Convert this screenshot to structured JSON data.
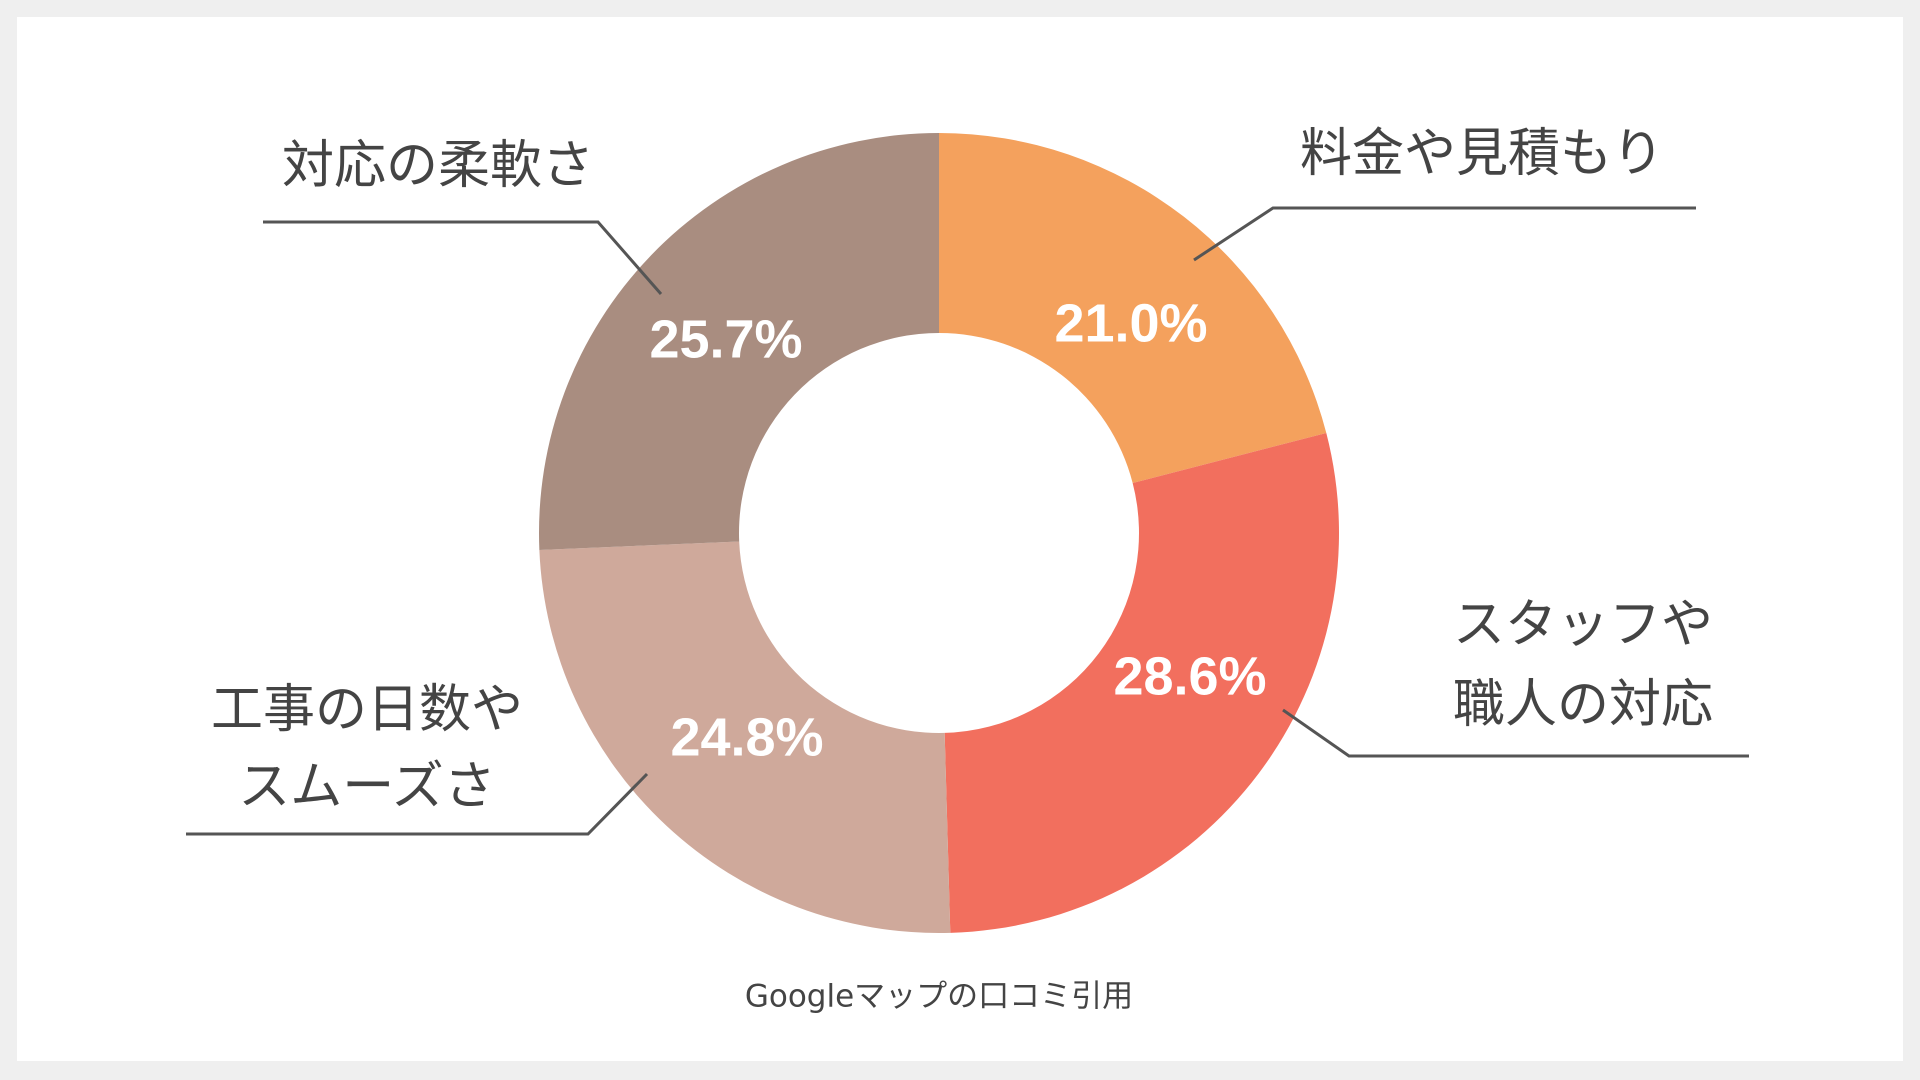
{
  "chart_data": {
    "type": "donut",
    "categories": [
      [
        "料金や見積もり"
      ],
      [
        "スタッフや",
        "職人の対応"
      ],
      [
        "工事の日数や",
        "スムーズさ"
      ],
      [
        "対応の柔軟さ"
      ]
    ],
    "values": [
      21.0,
      28.6,
      24.8,
      25.7
    ],
    "value_labels": [
      "21.0%",
      "28.6%",
      "24.8%",
      "25.7%"
    ],
    "colors": [
      "#f4a15d",
      "#f26f5e",
      "#cfa99b",
      "#a98d80"
    ],
    "caption": "Googleマップの口コミ引用"
  }
}
